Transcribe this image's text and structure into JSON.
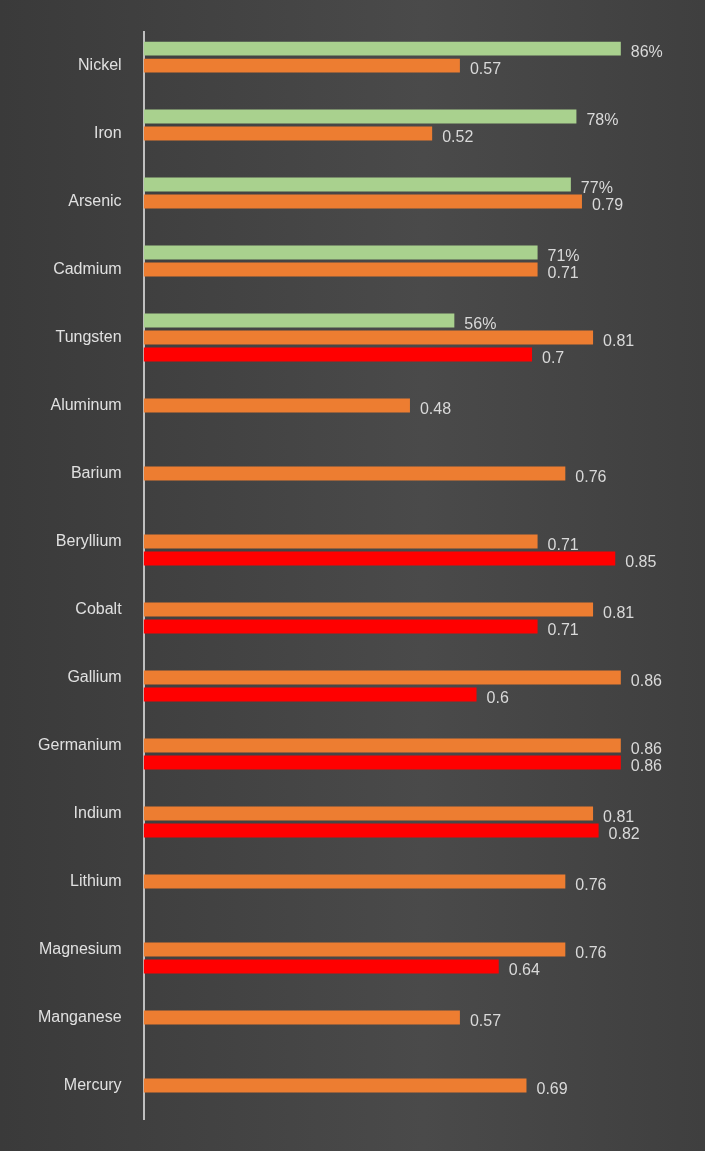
{
  "chart_data": {
    "type": "bar",
    "orientation": "horizontal",
    "tick_labels": "y",
    "grid": false,
    "legend": false,
    "categories": [
      "Nickel",
      "Iron",
      "Arsenic",
      "Cadmium",
      "Tungsten",
      "Aluminum",
      "Barium",
      "Beryllium",
      "Cobalt",
      "Gallium",
      "Germanium",
      "Indium",
      "Lithium",
      "Magnesium",
      "Manganese",
      "Mercury"
    ],
    "series": [
      {
        "color": "#a9d18e",
        "values": [
          0.86,
          0.78,
          0.77,
          0.71,
          0.56,
          null,
          null,
          null,
          null,
          null,
          null,
          null,
          null,
          null,
          null,
          null
        ],
        "value_labels": [
          "86%",
          "78%",
          "77%",
          "71%",
          "56%",
          null,
          null,
          null,
          null,
          null,
          null,
          null,
          null,
          null,
          null,
          null
        ]
      },
      {
        "color": "#ed7d31",
        "values": [
          0.57,
          0.52,
          0.79,
          0.71,
          0.81,
          0.48,
          0.76,
          0.71,
          0.81,
          0.86,
          0.86,
          0.81,
          0.76,
          0.76,
          0.57,
          0.69
        ],
        "value_labels": [
          "0.57",
          "0.52",
          "0.79",
          "0.71",
          "0.81",
          "0.48",
          "0.76",
          "0.71",
          "0.81",
          "0.86",
          "0.86",
          "0.81",
          "0.76",
          "0.76",
          "0.57",
          "0.69"
        ]
      },
      {
        "color": "#ff0000",
        "values": [
          null,
          null,
          null,
          null,
          0.7,
          null,
          null,
          0.85,
          0.71,
          0.6,
          0.86,
          0.82,
          null,
          0.64,
          null,
          null
        ],
        "value_labels": [
          null,
          null,
          null,
          null,
          "0.7",
          null,
          null,
          "0.85",
          "0.71",
          "0.6",
          "0.86",
          "0.82",
          null,
          "0.64",
          null,
          null
        ]
      }
    ]
  }
}
